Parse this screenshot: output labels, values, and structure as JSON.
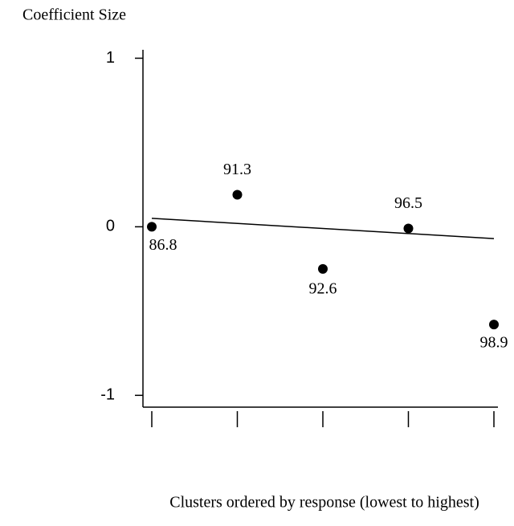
{
  "chart_data": {
    "type": "scatter",
    "title": "Coefficient Size",
    "x_label": "Clusters ordered by response (lowest to highest)",
    "categories": [
      null,
      null,
      null,
      null,
      null
    ],
    "values": [
      0.0,
      0.19,
      -0.25,
      -0.01,
      -0.58
    ],
    "labels": [
      "86.8",
      "91.3",
      "92.6",
      "96.5",
      "98.9"
    ],
    "color": "#000000",
    "trend_line": {
      "values": [
        0.05,
        -0.07
      ]
    },
    "ylim": [
      -1.07,
      1.05
    ],
    "yticks": [
      -1,
      0,
      1
    ]
  }
}
